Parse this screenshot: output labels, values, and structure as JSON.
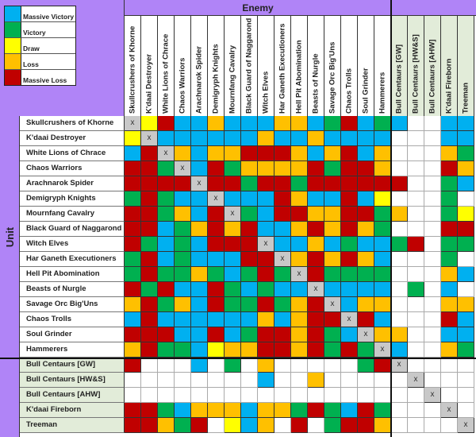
{
  "legend": {
    "items": [
      {
        "label": "Massive Victory",
        "color": "#00b0f0"
      },
      {
        "label": "Victory",
        "color": "#00b050"
      },
      {
        "label": "Draw",
        "color": "#ffff00"
      },
      {
        "label": "Loss",
        "color": "#ffc000"
      },
      {
        "label": "Massive Loss",
        "color": "#c00000"
      }
    ]
  },
  "enemy_label": "Enemy",
  "unit_label": "Unit",
  "cell_mark": "x",
  "columns": [
    "Skullcrushers of Khorne",
    "K'daai Destroyer",
    "White Lions of Chrace",
    "Chaos Warriors",
    "Arachnarok Spider",
    "Demigryph Knights",
    "Mournfang Cavalry",
    "Black Guard of Naggarond",
    "Witch Elves",
    "Har Ganeth Executioners",
    "Hell Pit Abomination",
    "Beasts of Nurgle",
    "Savage Orc Big'Uns",
    "Chaos Trolls",
    "Soul Grinder",
    "Hammerers",
    "Bull Centaurs [GW]",
    "Bull Centaurs [HW&S]",
    "Bull Centaurs [AHW]",
    "K'daai Fireborn",
    "Treeman"
  ],
  "extra_columns_start": 16,
  "color_key": {
    "B": "Massive Victory",
    "G": "Victory",
    "Y": "Draw",
    "O": "Loss",
    "R": "Massive Loss",
    "W": "",
    "X": "self"
  },
  "rows": [
    {
      "label": "Skullcrushers of Khorne",
      "cells": "XYRBBOBBBOOBGRBGBWWBB"
    },
    {
      "label": "K'daai Destroyer",
      "cells": "YXBBBBBBOBBOBBBBWWWBB"
    },
    {
      "label": "White Lions of Chrace",
      "cells": "BRXOBOORRROBORBOWWWOG"
    },
    {
      "label": "Chaos Warriors",
      "cells": "RRGXBRGOOOORGRROWWWRO"
    },
    {
      "label": "Arachnarok Spider",
      "cells": "RRRRXRRGRRGRRRRRRWWGB"
    },
    {
      "label": "Demigryph Knights",
      "cells": "GRGBBXBBBROBBRBYWWWGW"
    },
    {
      "label": "Mournfang Cavalry",
      "cells": "RRGOBRXGBRROORRGOWWGY"
    },
    {
      "label": "Black Guard of Naggarond",
      "cells": "RRBGORORBBOROROGWWWRR"
    },
    {
      "label": "Witch Elves",
      "cells": "RGBGBRRRXBBOBGBBGRWGG"
    },
    {
      "label": "Har Ganeth Executioners",
      "cells": "GRBGBBBRRXOROROBWWWGW"
    },
    {
      "label": "Hell Pit Abomination",
      "cells": "GRGGOGBGRGXRGGGGWWWOB"
    },
    {
      "label": "Beasts of Nurgle",
      "cells": "RGRBBRGBGBBXBBBBWGWBW"
    },
    {
      "label": "Savage Orc Big'Uns",
      "cells": "ORGOBRGGRGORXBOOWWWOO"
    },
    {
      "label": "Chaos Trolls",
      "cells": "BRBBBBBBOBORRXRBWWWRB"
    },
    {
      "label": "Soul Grinder",
      "cells": "RRRBBRBGRRORGBXOOWWBB"
    },
    {
      "label": "Hammerers",
      "cells": "ORGGBYOORRORGRGXBWWOG"
    },
    {
      "label": "Bull Centaurs [GW]",
      "cells": "RWWWBWGWOWWWWWGRXWWWW",
      "extra": true
    },
    {
      "label": "Bull Centaurs [HW&S]",
      "cells": "WWWWWWWWBWWOWWWWWXWWW",
      "extra": true
    },
    {
      "label": "Bull Centaurs [AHW]",
      "cells": "WWWWWWWWWWWWWWWWWWXWW",
      "extra": true
    },
    {
      "label": "K'daai Fireborn",
      "cells": "RRGBOOOBOOGRGBRGWWWXW",
      "extra": true
    },
    {
      "label": "Treeman",
      "cells": "RROGRWYBOWRWGRROWWWWX",
      "extra": true
    }
  ]
}
